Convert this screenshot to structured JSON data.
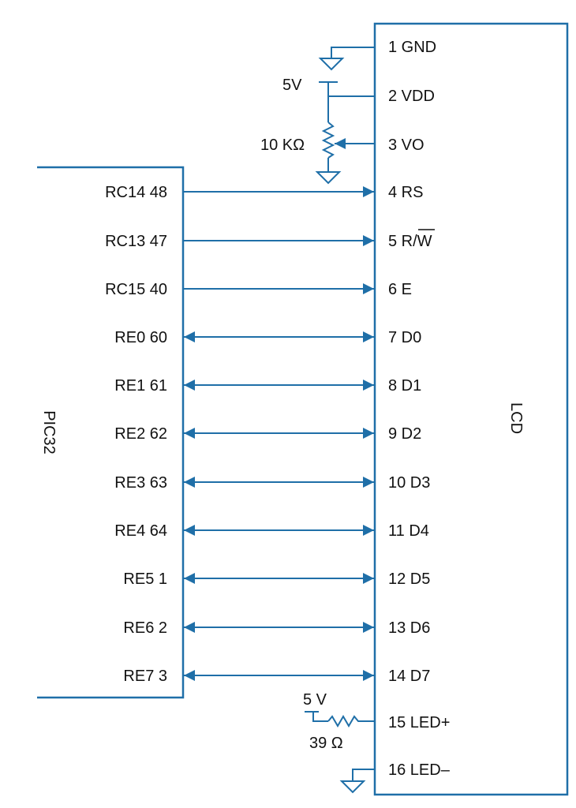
{
  "pic": {
    "label": "PIC32",
    "pins": [
      "RC14 48",
      "RC13 47",
      "RC15 40",
      "RE0 60",
      "RE1 61",
      "RE2 62",
      "RE3 63",
      "RE4 64",
      "RE5 1",
      "RE6 2",
      "RE7 3"
    ]
  },
  "lcd": {
    "label": "LCD",
    "pins": [
      "1 GND",
      "2 VDD",
      "3 VO",
      "4 RS",
      "5 R/W",
      "6 E",
      "7 D0",
      "8 D1",
      "9 D2",
      "10 D3",
      "11 D4",
      "12 D5",
      "13 D6",
      "14 D7",
      "15 LED+",
      "16 LED–"
    ]
  },
  "components": {
    "supply_top": "5V",
    "pot": "10 KΩ",
    "supply_bottom": "5 V",
    "resistor": "39 Ω"
  },
  "colors": {
    "wire": "#1f6fa8",
    "text": "#111111"
  }
}
